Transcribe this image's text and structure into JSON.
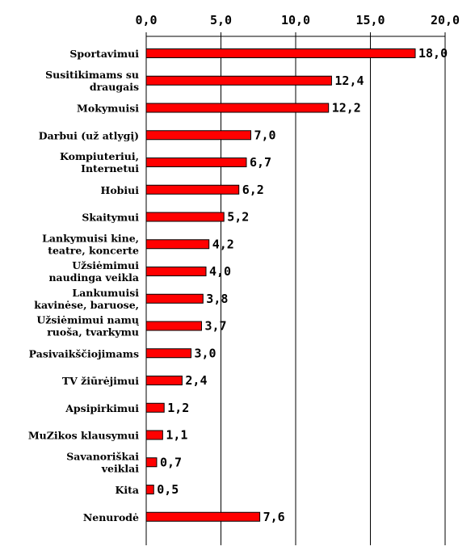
{
  "chart_data": {
    "type": "bar",
    "orientation": "horizontal",
    "xlim": [
      0,
      20
    ],
    "ticks": [
      "0,0",
      "5,0",
      "10,0",
      "15,0",
      "20,0"
    ],
    "tick_values": [
      0,
      5,
      10,
      15,
      20
    ],
    "axis_position": "top",
    "grid": true,
    "bar_color": "#ff0000",
    "categories": [
      [
        "Sportavimui"
      ],
      [
        "Susitikimams su",
        "draugais"
      ],
      [
        "Mokymuisi"
      ],
      [
        "Darbui (už atlygį)"
      ],
      [
        "Kompiuteriui,",
        "Internetui"
      ],
      [
        "Hobiui"
      ],
      [
        "Skaitymui"
      ],
      [
        "Lankymuisi kine,",
        "teatre, koncerte"
      ],
      [
        "Užsiėmimui",
        "naudinga veikla"
      ],
      [
        "Lankumuisi",
        "kavinėse, baruose,"
      ],
      [
        "Užsiėmimui namų",
        "ruoša, tvarkymu"
      ],
      [
        "Pasivaikščiojimams"
      ],
      [
        "TV žiūrėjimui"
      ],
      [
        "Apsipirkimui"
      ],
      [
        "MuZikos klausymui"
      ],
      [
        "Savanoriškai",
        "veiklai"
      ],
      [
        "Kita"
      ],
      [
        "Nenurodė"
      ]
    ],
    "values": [
      18.0,
      12.4,
      12.2,
      7.0,
      6.7,
      6.2,
      5.2,
      4.2,
      4.0,
      3.8,
      3.7,
      3.0,
      2.4,
      1.2,
      1.1,
      0.7,
      0.5,
      7.6
    ],
    "value_labels": [
      "18,0",
      "12,4",
      "12,2",
      "7,0",
      "6,7",
      "6,2",
      "5,2",
      "4,2",
      "4,0",
      "3,8",
      "3,7",
      "3,0",
      "2,4",
      "1,2",
      "1,1",
      "0,7",
      "0,5",
      "7,6"
    ]
  }
}
